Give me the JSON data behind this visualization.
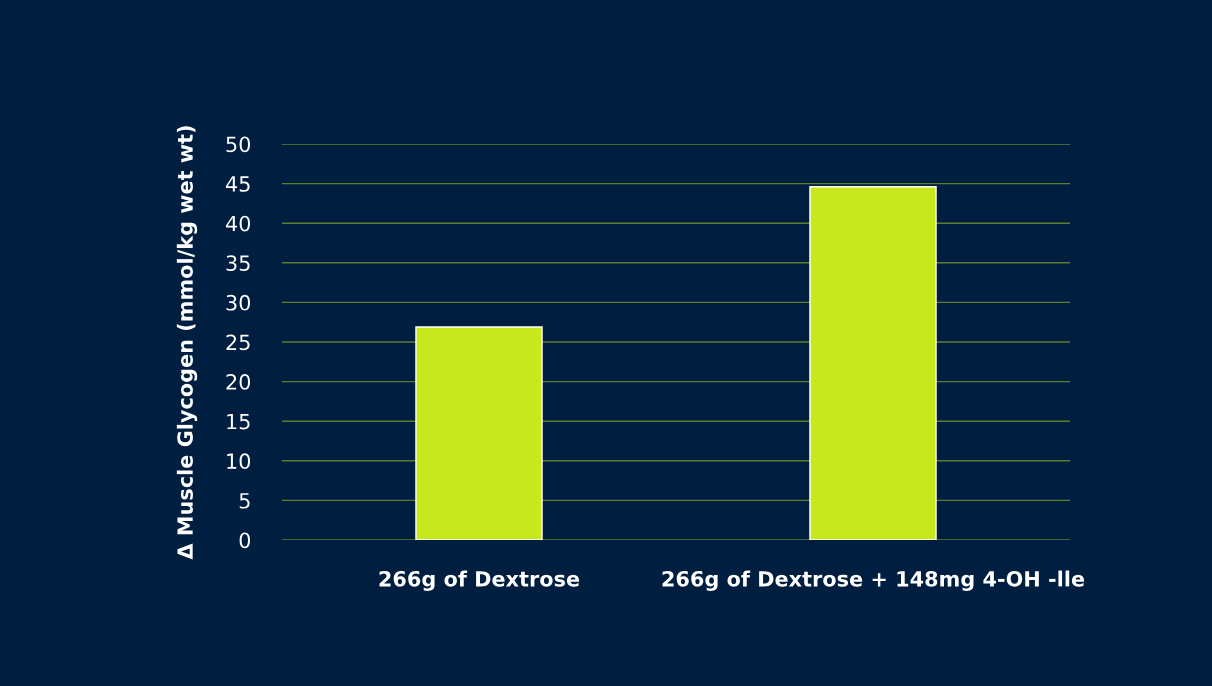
{
  "chart_data": {
    "type": "bar",
    "ylabel": "Δ Muscle Glycogen (mmol/kg wet wt)",
    "categories": [
      "266g of Dextrose",
      "266g of Dextrose + 148mg 4-OH -lle"
    ],
    "values": [
      26.9,
      44.6
    ],
    "color": "#c8e81e",
    "ylim": [
      0,
      50
    ],
    "yticks": [
      0,
      5,
      10,
      15,
      20,
      25,
      30,
      35,
      40,
      45,
      50
    ],
    "grid": "y"
  }
}
